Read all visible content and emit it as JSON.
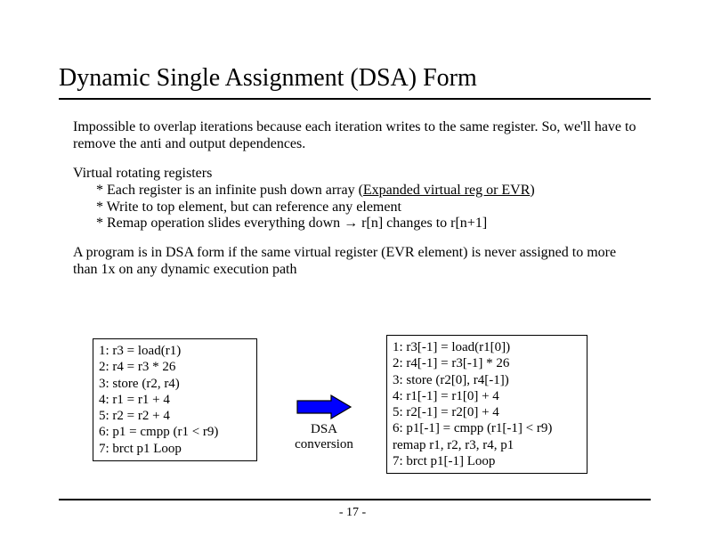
{
  "title": "Dynamic Single Assignment (DSA) Form",
  "para1": "Impossible to overlap iterations because each iteration writes to the same register.  So, we'll have to remove the anti and output dependences.",
  "vrr_heading": "Virtual rotating registers",
  "vrr_b1_pre": "* Each register is an infinite push down array (",
  "vrr_b1_u": "Expanded virtual reg or EVR",
  "vrr_b1_post": ")",
  "vrr_b2": "* Write to top element, but can reference any element",
  "vrr_b3_pre": "* Remap operation slides everything down ",
  "vrr_b3_post": " r[n] changes to r[n+1]",
  "para3": "A program is in DSA form if the same virtual register (EVR element) is never assigned to more than 1x on any dynamic execution path",
  "code_left": [
    "1: r3 = load(r1)",
    "2: r4 = r3 * 26",
    "3: store (r2, r4)",
    "4: r1 = r1 + 4",
    "5: r2 = r2 + 4",
    "6: p1 = cmpp (r1 < r9)",
    "7: brct p1 Loop"
  ],
  "code_right": [
    "1: r3[-1] = load(r1[0])",
    "2: r4[-1] = r3[-1] * 26",
    "3: store (r2[0], r4[-1])",
    "4: r1[-1] = r1[0] + 4",
    "5: r2[-1] = r2[0] + 4",
    "6: p1[-1] = cmpp (r1[-1] < r9)",
    "remap r1, r2, r3, r4, p1",
    "7: brct p1[-1] Loop"
  ],
  "arrow_label_1": "DSA",
  "arrow_label_2": "conversion",
  "arrow": {
    "fill": "#0000ff",
    "stroke": "#000000",
    "width": 64,
    "height": 30
  },
  "page_number": "- 17 -",
  "colors": {
    "text": "#000000",
    "background": "#ffffff",
    "arrow_fill": "#0000ff"
  }
}
